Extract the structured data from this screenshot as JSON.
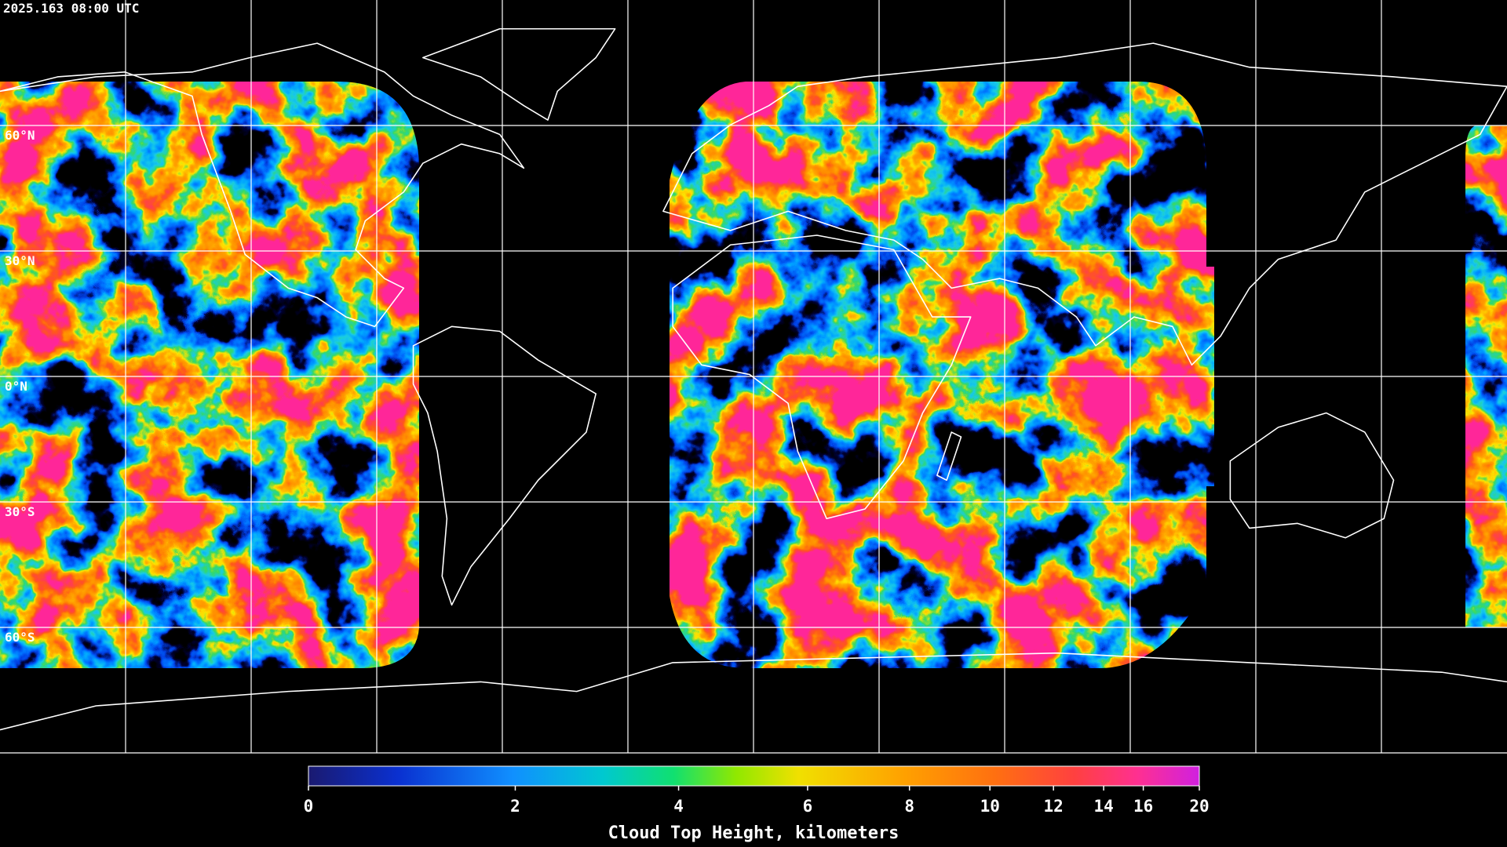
{
  "header": {
    "timestamp": "2025.163 08:00 UTC"
  },
  "chart_data": {
    "type": "map",
    "xlim": [
      -180,
      180
    ],
    "ylim": [
      -90,
      90
    ],
    "xticks": [
      -150,
      -120,
      -90,
      -60,
      -30,
      0,
      30,
      60,
      90,
      120,
      150
    ],
    "yticks": [
      {
        "value": 60,
        "label": "60°N"
      },
      {
        "value": 30,
        "label": "30°N"
      },
      {
        "value": 0,
        "label": "0°N"
      },
      {
        "value": -30,
        "label": "30°S"
      },
      {
        "value": -60,
        "label": "60°S"
      }
    ],
    "grid": true,
    "colorbar": {
      "label": "Cloud Top Height, kilometers",
      "lim": [
        0,
        20
      ],
      "ticks": [
        0,
        2,
        4,
        6,
        8,
        10,
        12,
        14,
        16,
        20
      ]
    }
  }
}
